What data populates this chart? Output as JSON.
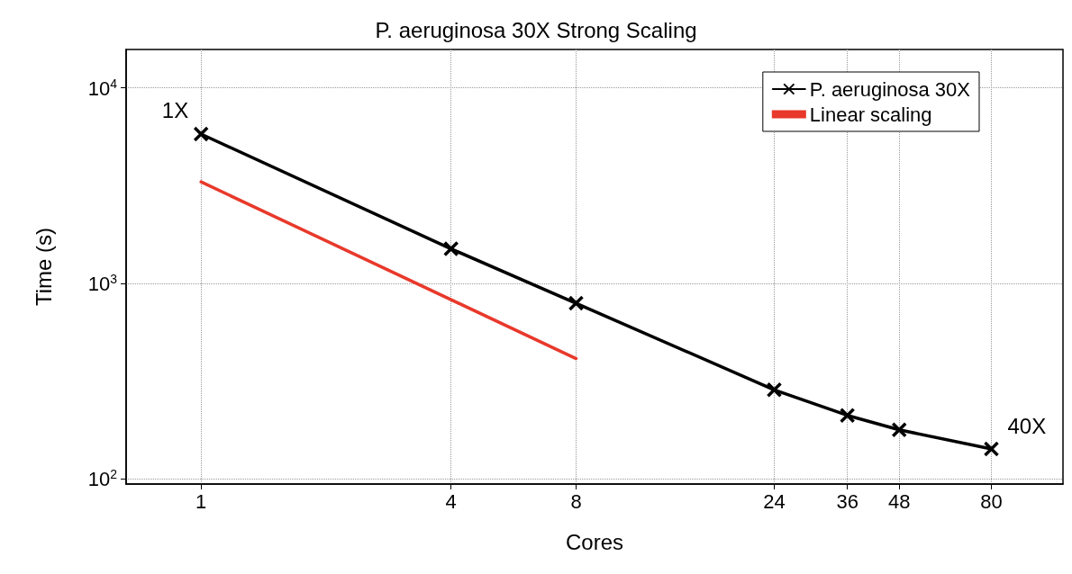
{
  "chart_data": {
    "type": "line",
    "title": "P. aeruginosa 30X Strong Scaling",
    "xlabel": "Cores",
    "ylabel": "Time (s)",
    "log": "xy",
    "grid": true,
    "legend": "top right",
    "line_style": "solid",
    "xlim": [
      0.66,
      119
    ],
    "xticks": [
      1,
      4,
      8,
      24,
      36,
      48,
      80
    ],
    "ylim": [
      94,
      15700
    ],
    "yticks": [
      {
        "value": 100,
        "label": "10$^{2}$"
      },
      {
        "value": 1000,
        "label": "10$^{3}$"
      },
      {
        "value": 10000,
        "label": "10$^{4}$"
      }
    ],
    "series": [
      {
        "name": "P. aeruginosa 30X",
        "color": "#000000",
        "marker": "cross",
        "x": [
          1,
          4,
          8,
          24,
          36,
          48,
          80
        ],
        "values": [
          5800,
          1500,
          790,
          285,
          211,
          178,
          142
        ]
      },
      {
        "name": "Linear scaling",
        "color": "#e8392b",
        "marker": "none",
        "x": [
          1,
          8
        ],
        "values": [
          3300,
          412
        ]
      }
    ],
    "annotations": [
      {
        "text": "1X",
        "x": 1,
        "y": 5800
      },
      {
        "text": "40X",
        "x": 80,
        "y": 142
      }
    ]
  }
}
